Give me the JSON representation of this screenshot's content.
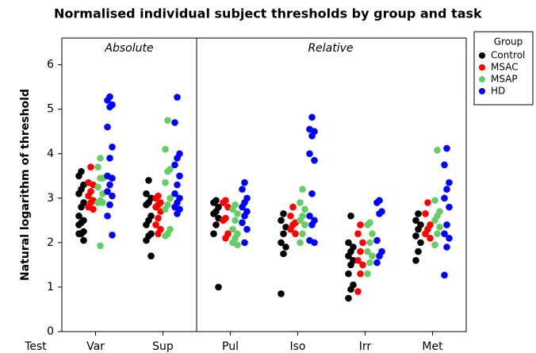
{
  "chart_data": {
    "type": "strip",
    "title": "Normalised individual subject thresholds by group and task",
    "ylabel": "Natural logarithm of threshold",
    "xlabel": "Test",
    "annotations": [
      "Absolute",
      "Relative"
    ],
    "legend_title": "Group",
    "legend": "upper right",
    "categories": [
      "Var",
      "Sup",
      "Pul",
      "Iso",
      "Irr",
      "Met"
    ],
    "ylim": [
      0,
      6.6
    ],
    "yticks": [
      0,
      1,
      2,
      3,
      4,
      5,
      6
    ],
    "series": [
      {
        "name": "Control",
        "color": "#000000",
        "values": [
          [
            3.6,
            3.5,
            3.3,
            3.2,
            3.1,
            2.9,
            2.8,
            2.6,
            2.5,
            2.45,
            2.4,
            2.25,
            2.2,
            2.2,
            2.05
          ],
          [
            3.4,
            3.1,
            3.0,
            2.9,
            2.85,
            2.6,
            2.5,
            2.4,
            2.2,
            2.15,
            2.05,
            1.7
          ],
          [
            2.95,
            2.9,
            2.8,
            2.7,
            2.65,
            2.55,
            2.4,
            2.2,
            1.0
          ],
          [
            2.65,
            2.5,
            2.35,
            2.2,
            2.0,
            1.9,
            1.75,
            0.85
          ],
          [
            2.6,
            2.0,
            1.9,
            1.8,
            1.7,
            1.6,
            1.5,
            1.3,
            1.05,
            0.95,
            0.75
          ],
          [
            2.65,
            2.5,
            2.4,
            2.3,
            2.15,
            2.0,
            1.8,
            1.6
          ]
        ]
      },
      {
        "name": "MSAC",
        "color": "#ff0000",
        "values": [
          [
            3.7,
            3.35,
            3.3,
            3.15,
            3.05,
            2.95,
            2.9,
            2.8,
            2.75
          ],
          [
            3.05,
            3.0,
            2.9,
            2.85,
            2.8,
            2.7,
            2.55,
            2.4,
            2.3,
            2.2
          ],
          [
            2.95,
            2.9,
            2.8,
            2.55,
            2.5,
            2.2,
            2.1
          ],
          [
            2.8,
            2.6,
            2.45,
            2.4,
            2.3,
            2.2
          ],
          [
            2.4,
            2.2,
            2.0,
            1.8,
            1.6,
            1.5,
            1.3,
            0.9
          ],
          [
            2.9,
            2.65,
            2.4,
            2.3,
            2.2,
            2.1
          ]
        ]
      },
      {
        "name": "MSAP",
        "color": "#66cc66",
        "values": [
          [
            3.9,
            3.7,
            3.45,
            3.45,
            3.25,
            3.1,
            2.95,
            2.9,
            2.9,
            1.93
          ],
          [
            4.75,
            4.1,
            3.65,
            3.6,
            3.35,
            3.0,
            2.85,
            2.75,
            2.3,
            2.2,
            2.15
          ],
          [
            2.85,
            2.75,
            2.65,
            2.5,
            2.3,
            2.2,
            2.1,
            2.0,
            1.95
          ],
          [
            3.2,
            2.9,
            2.75,
            2.6,
            2.5,
            2.4,
            2.2,
            2.0
          ],
          [
            2.45,
            2.4,
            2.2,
            2.0,
            1.8,
            1.7,
            1.55,
            1.3
          ],
          [
            4.08,
            2.95,
            2.7,
            2.6,
            2.5,
            2.35,
            2.2,
            1.95
          ]
        ]
      },
      {
        "name": "HD",
        "color": "#0000ff",
        "values": [
          [
            5.28,
            5.2,
            5.1,
            5.05,
            4.6,
            4.15,
            3.9,
            3.5,
            3.45,
            3.3,
            3.15,
            3.05,
            2.85,
            2.6,
            2.17
          ],
          [
            5.27,
            4.7,
            4.0,
            3.9,
            3.75,
            3.5,
            3.3,
            3.1,
            3.0,
            2.9,
            2.8,
            2.75,
            2.65
          ],
          [
            3.35,
            3.2,
            3.0,
            2.9,
            2.8,
            2.7,
            2.6,
            2.45,
            2.3,
            2.0
          ],
          [
            4.82,
            4.55,
            4.5,
            4.4,
            4.0,
            3.85,
            3.1,
            2.6,
            2.5,
            2.4,
            2.05,
            2.0
          ],
          [
            2.95,
            2.9,
            2.7,
            2.65,
            2.05,
            1.8,
            1.7,
            1.55
          ],
          [
            4.12,
            3.75,
            3.35,
            3.2,
            3.0,
            2.8,
            2.4,
            2.2,
            2.1,
            1.9,
            1.27
          ]
        ]
      }
    ]
  }
}
